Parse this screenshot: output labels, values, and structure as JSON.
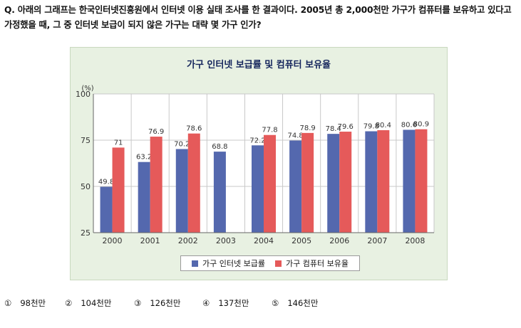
{
  "question": {
    "text": "Q. 아래의 그래프는 한국인터넷진흥원에서 인터넷 이용 실태 조사를 한 결과이다. 2005년 총 2,000천만 가구가 컴퓨터를 보유하고 있다고 가정했을 때, 그 중 인터넷 보급이 되지 않은 가구는 대략 몇 가구 인가?"
  },
  "chart_data": {
    "type": "bar",
    "title": "가구 인터넷 보급률 및 컴퓨터 보유율",
    "ylabel": "(%)",
    "xlabel": "",
    "ylim": [
      25,
      100
    ],
    "yticks": [
      25,
      50,
      75,
      100
    ],
    "categories": [
      "2000",
      "2001",
      "2002",
      "2003",
      "2004",
      "2005",
      "2006",
      "2007",
      "2008"
    ],
    "series": [
      {
        "name": "가구 인터넷 보급률",
        "color": "#5468ae",
        "values": [
          49.8,
          63.2,
          70.2,
          68.8,
          72.2,
          74.8,
          78.4,
          79.8,
          80.6
        ],
        "labels": [
          "49.8",
          "63.2",
          "70.2",
          "68.8",
          "72.2",
          "74.8",
          "78.4",
          "79.8",
          "80.6"
        ]
      },
      {
        "name": "가구 컴퓨터 보유율",
        "color": "#e55a5a",
        "values": [
          71,
          76.9,
          78.6,
          null,
          77.8,
          78.9,
          79.6,
          80.4,
          80.9
        ],
        "labels": [
          "71",
          "76.9",
          "78.6",
          null,
          "77.8",
          "78.9",
          "79.6",
          "80.4",
          "80.9"
        ]
      }
    ],
    "grid": true,
    "legend_position": "bottom"
  },
  "answers": [
    {
      "num": "①",
      "text": "98천만"
    },
    {
      "num": "②",
      "text": "104천만"
    },
    {
      "num": "③",
      "text": "126천만"
    },
    {
      "num": "④",
      "text": "137천만"
    },
    {
      "num": "⑤",
      "text": "146천만"
    }
  ]
}
